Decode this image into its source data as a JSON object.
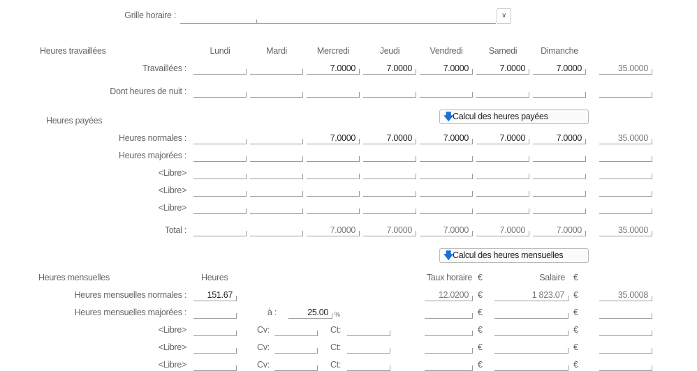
{
  "grille": {
    "label": "Grille horaire :",
    "value": "",
    "dropdown_icon": "chevron-down-icon"
  },
  "travaillees": {
    "section": "Heures travaillées",
    "days": [
      "Lundi",
      "Mardi",
      "Mercredi",
      "Jeudi",
      "Vendredi",
      "Samedi",
      "Dimanche"
    ],
    "rows": [
      {
        "label": "Travaillées :",
        "values": [
          "",
          "",
          "7.0000",
          "7.0000",
          "7.0000",
          "7.0000",
          "7.0000"
        ],
        "total": "35.0000"
      },
      {
        "label": "Dont heures de nuit :",
        "values": [
          "",
          "",
          "",
          "",
          "",
          "",
          ""
        ],
        "total": ""
      }
    ]
  },
  "payees": {
    "section": "Heures payées",
    "button": "Calcul des heures payées",
    "rows": [
      {
        "label": "Heures normales :",
        "values": [
          "",
          "",
          "7.0000",
          "7.0000",
          "7.0000",
          "7.0000",
          "7.0000"
        ],
        "total": "35.0000"
      },
      {
        "label": "Heures majorées :",
        "values": [
          "",
          "",
          "",
          "",
          "",
          "",
          ""
        ],
        "total": ""
      },
      {
        "label": "<Libre>",
        "values": [
          "",
          "",
          "",
          "",
          "",
          "",
          ""
        ],
        "total": ""
      },
      {
        "label": "<Libre>",
        "values": [
          "",
          "",
          "",
          "",
          "",
          "",
          ""
        ],
        "total": ""
      },
      {
        "label": "<Libre>",
        "values": [
          "",
          "",
          "",
          "",
          "",
          "",
          ""
        ],
        "total": ""
      },
      {
        "label": "Total :",
        "values": [
          "",
          "",
          "7.0000",
          "7.0000",
          "7.0000",
          "7.0000",
          "7.0000"
        ],
        "total": "35.0000",
        "readonly": true
      }
    ]
  },
  "mensuelles": {
    "section": "Heures mensuelles",
    "button": "Calcul des heures mensuelles",
    "col_heures": "Heures",
    "col_taux": "Taux horaire",
    "col_salaire": "Salaire",
    "currency": "€",
    "a_label": "à :",
    "a_value": "25.00",
    "percent": "%",
    "cv_label": "Cv:",
    "ct_label": "Ct:",
    "rows": [
      {
        "label": "Heures mensuelles normales :",
        "heures": "151.67",
        "taux": "12.0200",
        "salaire": "1 823.07",
        "extra": "35.0008"
      },
      {
        "label": "Heures mensuelles majorées :",
        "heures": "",
        "taux": "",
        "salaire": "",
        "extra": ""
      },
      {
        "label": "<Libre>",
        "heures": "",
        "cv": "",
        "ct": "",
        "taux": "",
        "salaire": "",
        "extra": ""
      },
      {
        "label": "<Libre>",
        "heures": "",
        "cv": "",
        "ct": "",
        "taux": "",
        "salaire": "",
        "extra": ""
      },
      {
        "label": "<Libre>",
        "heures": "",
        "cv": "",
        "ct": "",
        "taux": "",
        "salaire": "",
        "extra": ""
      }
    ]
  }
}
